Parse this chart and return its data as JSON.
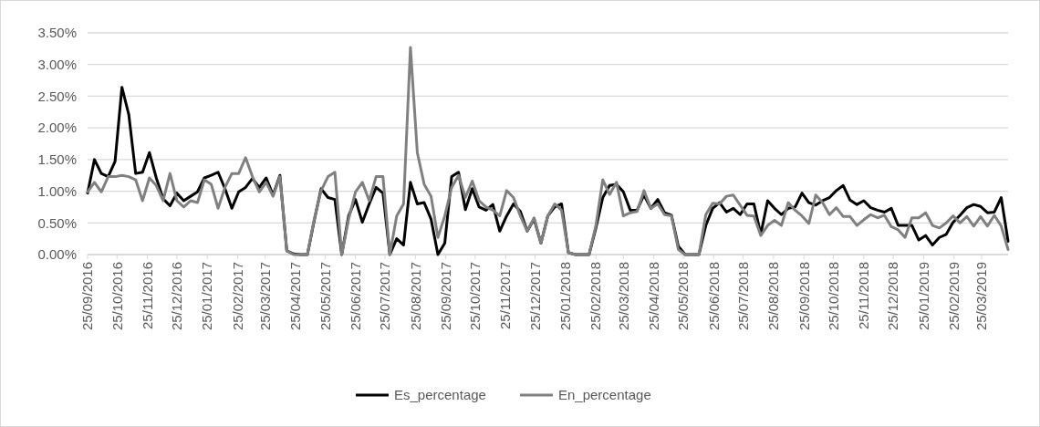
{
  "chart_data": {
    "type": "line",
    "x": [
      "2016-09-25",
      "2016-10-02",
      "2016-10-09",
      "2016-10-16",
      "2016-10-23",
      "2016-10-30",
      "2016-11-06",
      "2016-11-13",
      "2016-11-20",
      "2016-11-27",
      "2016-12-04",
      "2016-12-11",
      "2016-12-18",
      "2016-12-25",
      "2017-01-01",
      "2017-01-08",
      "2017-01-15",
      "2017-01-22",
      "2017-01-29",
      "2017-02-05",
      "2017-02-12",
      "2017-02-19",
      "2017-02-26",
      "2017-03-05",
      "2017-03-12",
      "2017-03-19",
      "2017-03-26",
      "2017-04-02",
      "2017-04-09",
      "2017-04-16",
      "2017-04-23",
      "2017-04-30",
      "2017-05-07",
      "2017-05-14",
      "2017-05-21",
      "2017-05-28",
      "2017-06-04",
      "2017-06-11",
      "2017-06-18",
      "2017-06-25",
      "2017-07-02",
      "2017-07-09",
      "2017-07-16",
      "2017-07-23",
      "2017-07-30",
      "2017-08-06",
      "2017-08-13",
      "2017-08-20",
      "2017-08-27",
      "2017-09-03",
      "2017-09-10",
      "2017-09-17",
      "2017-09-24",
      "2017-10-01",
      "2017-10-08",
      "2017-10-15",
      "2017-10-22",
      "2017-10-29",
      "2017-11-05",
      "2017-11-12",
      "2017-11-19",
      "2017-11-26",
      "2017-12-03",
      "2017-12-10",
      "2017-12-17",
      "2017-12-24",
      "2017-12-31",
      "2018-01-07",
      "2018-01-14",
      "2018-01-21",
      "2018-01-28",
      "2018-02-04",
      "2018-02-11",
      "2018-02-18",
      "2018-02-25",
      "2018-03-04",
      "2018-03-11",
      "2018-03-18",
      "2018-03-25",
      "2018-04-01",
      "2018-04-08",
      "2018-04-15",
      "2018-04-22",
      "2018-04-29",
      "2018-05-06",
      "2018-05-13",
      "2018-05-20",
      "2018-05-27",
      "2018-06-03",
      "2018-06-10",
      "2018-06-17",
      "2018-06-24",
      "2018-07-01",
      "2018-07-08",
      "2018-07-15",
      "2018-07-22",
      "2018-07-29",
      "2018-08-05",
      "2018-08-12",
      "2018-08-19",
      "2018-08-26",
      "2018-09-02",
      "2018-09-09",
      "2018-09-16",
      "2018-09-23",
      "2018-09-30",
      "2018-10-07",
      "2018-10-14",
      "2018-10-21",
      "2018-10-28",
      "2018-11-04",
      "2018-11-11",
      "2018-11-18",
      "2018-11-25",
      "2018-12-02",
      "2018-12-09",
      "2018-12-16",
      "2018-12-23",
      "2018-12-30",
      "2019-01-06",
      "2019-01-13",
      "2019-01-20",
      "2019-01-27",
      "2019-02-03",
      "2019-02-10",
      "2019-02-17",
      "2019-02-24",
      "2019-03-03",
      "2019-03-10",
      "2019-03-17",
      "2019-03-24",
      "2019-03-31",
      "2019-04-07",
      "2019-04-14",
      "2019-04-21"
    ],
    "series": [
      {
        "name": "Es_percentage",
        "color": "#000000",
        "values": [
          0.97,
          1.5,
          1.28,
          1.23,
          1.47,
          2.64,
          2.21,
          1.28,
          1.3,
          1.61,
          1.21,
          0.88,
          0.77,
          0.97,
          0.85,
          0.92,
          0.99,
          1.21,
          1.25,
          1.3,
          1.04,
          0.73,
          0.99,
          1.06,
          1.2,
          1.06,
          1.21,
          0.94,
          1.25,
          0.06,
          0.01,
          0,
          0,
          0.54,
          1.04,
          0.9,
          0.87,
          0,
          0.61,
          0.87,
          0.51,
          0.8,
          1.06,
          0.97,
          0,
          0.25,
          0.15,
          1.14,
          0.8,
          0.82,
          0.56,
          0,
          0.18,
          1.23,
          1.3,
          0.71,
          1.04,
          0.75,
          0.7,
          0.79,
          0.37,
          0.61,
          0.8,
          0.68,
          0.37,
          0.56,
          0.18,
          0.61,
          0.75,
          0.8,
          0.03,
          0,
          0,
          0,
          0.42,
          0.9,
          1.09,
          1.11,
          0.99,
          0.7,
          0.7,
          0.94,
          0.73,
          0.87,
          0.66,
          0.62,
          0.13,
          0,
          0,
          0,
          0.46,
          0.73,
          0.82,
          0.67,
          0.73,
          0.63,
          0.8,
          0.8,
          0.32,
          0.85,
          0.73,
          0.63,
          0.73,
          0.75,
          0.97,
          0.82,
          0.78,
          0.85,
          0.9,
          1.01,
          1.09,
          0.86,
          0.79,
          0.85,
          0.74,
          0.7,
          0.67,
          0.73,
          0.46,
          0.46,
          0.46,
          0.23,
          0.3,
          0.15,
          0.27,
          0.32,
          0.51,
          0.62,
          0.74,
          0.79,
          0.76,
          0.66,
          0.67,
          0.9,
          0.21
        ]
      },
      {
        "name": "En_percentage",
        "color": "#808080",
        "values": [
          0.99,
          1.14,
          0.99,
          1.23,
          1.23,
          1.25,
          1.23,
          1.18,
          0.85,
          1.21,
          1.09,
          0.85,
          1.28,
          0.85,
          0.75,
          0.85,
          0.82,
          1.18,
          1.11,
          0.73,
          1.06,
          1.28,
          1.28,
          1.53,
          1.23,
          0.99,
          1.14,
          0.92,
          1.23,
          0.06,
          0,
          0,
          0,
          0.56,
          1.01,
          1.23,
          1.3,
          0,
          0.56,
          0.99,
          1.14,
          0.85,
          1.23,
          1.23,
          0,
          0.61,
          0.8,
          3.27,
          1.61,
          1.11,
          0.92,
          0.27,
          0.61,
          1.06,
          1.25,
          0.9,
          1.16,
          0.85,
          0.75,
          0.7,
          0.61,
          1.01,
          0.9,
          0.61,
          0.37,
          0.58,
          0.18,
          0.61,
          0.8,
          0.7,
          0.03,
          0,
          0,
          0,
          0.46,
          1.18,
          0.95,
          1.14,
          0.61,
          0.66,
          0.68,
          1.01,
          0.73,
          0.8,
          0.63,
          0.61,
          0.08,
          0,
          0,
          0,
          0.63,
          0.81,
          0.8,
          0.92,
          0.94,
          0.78,
          0.62,
          0.61,
          0.3,
          0.46,
          0.54,
          0.46,
          0.82,
          0.7,
          0.61,
          0.49,
          0.94,
          0.82,
          0.63,
          0.74,
          0.6,
          0.6,
          0.46,
          0.55,
          0.63,
          0.58,
          0.62,
          0.44,
          0.39,
          0.27,
          0.58,
          0.58,
          0.66,
          0.46,
          0.42,
          0.5,
          0.61,
          0.5,
          0.6,
          0.45,
          0.6,
          0.45,
          0.62,
          0.45,
          0.08
        ]
      }
    ],
    "xlim": [
      "2016-09-25",
      "2019-04-21"
    ],
    "xticks": [
      {
        "value": "2016-09-25",
        "label": "25/09/2016"
      },
      {
        "value": "2016-10-25",
        "label": "25/10/2016"
      },
      {
        "value": "2016-11-25",
        "label": "25/11/2016"
      },
      {
        "value": "2016-12-25",
        "label": "25/12/2016"
      },
      {
        "value": "2017-01-25",
        "label": "25/01/2017"
      },
      {
        "value": "2017-02-25",
        "label": "25/02/2017"
      },
      {
        "value": "2017-03-25",
        "label": "25/03/2017"
      },
      {
        "value": "2017-04-25",
        "label": "25/04/2017"
      },
      {
        "value": "2017-05-25",
        "label": "25/05/2017"
      },
      {
        "value": "2017-06-25",
        "label": "25/06/2017"
      },
      {
        "value": "2017-07-25",
        "label": "25/07/2017"
      },
      {
        "value": "2017-08-25",
        "label": "25/08/2017"
      },
      {
        "value": "2017-09-25",
        "label": "25/09/2017"
      },
      {
        "value": "2017-10-25",
        "label": "25/10/2017"
      },
      {
        "value": "2017-11-25",
        "label": "25/11/2017"
      },
      {
        "value": "2017-12-25",
        "label": "25/12/2017"
      },
      {
        "value": "2018-01-25",
        "label": "25/01/2018"
      },
      {
        "value": "2018-02-25",
        "label": "25/02/2018"
      },
      {
        "value": "2018-03-25",
        "label": "25/03/2018"
      },
      {
        "value": "2018-04-25",
        "label": "25/04/2018"
      },
      {
        "value": "2018-05-25",
        "label": "25/05/2018"
      },
      {
        "value": "2018-06-25",
        "label": "25/06/2018"
      },
      {
        "value": "2018-07-25",
        "label": "25/07/2018"
      },
      {
        "value": "2018-08-25",
        "label": "25/08/2018"
      },
      {
        "value": "2018-09-25",
        "label": "25/09/2018"
      },
      {
        "value": "2018-10-25",
        "label": "25/10/2018"
      },
      {
        "value": "2018-11-25",
        "label": "25/11/2018"
      },
      {
        "value": "2018-12-25",
        "label": "25/12/2018"
      },
      {
        "value": "2019-01-25",
        "label": "25/01/2019"
      },
      {
        "value": "2019-02-25",
        "label": "25/02/2019"
      },
      {
        "value": "2019-03-25",
        "label": "25/03/2019"
      }
    ],
    "ylim": [
      0,
      3.5
    ],
    "yticks": [
      {
        "value": 0,
        "label": "0.00%"
      },
      {
        "value": 0.5,
        "label": "0.50%"
      },
      {
        "value": 1,
        "label": "1.00%"
      },
      {
        "value": 1.5,
        "label": "1.50%"
      },
      {
        "value": 2,
        "label": "2.00%"
      },
      {
        "value": 2.5,
        "label": "2.50%"
      },
      {
        "value": 3,
        "label": "3.00%"
      },
      {
        "value": 3.5,
        "label": "3.50%"
      }
    ],
    "grid": "y",
    "legend": "bottom",
    "line_style": "solid",
    "marker": "none"
  }
}
